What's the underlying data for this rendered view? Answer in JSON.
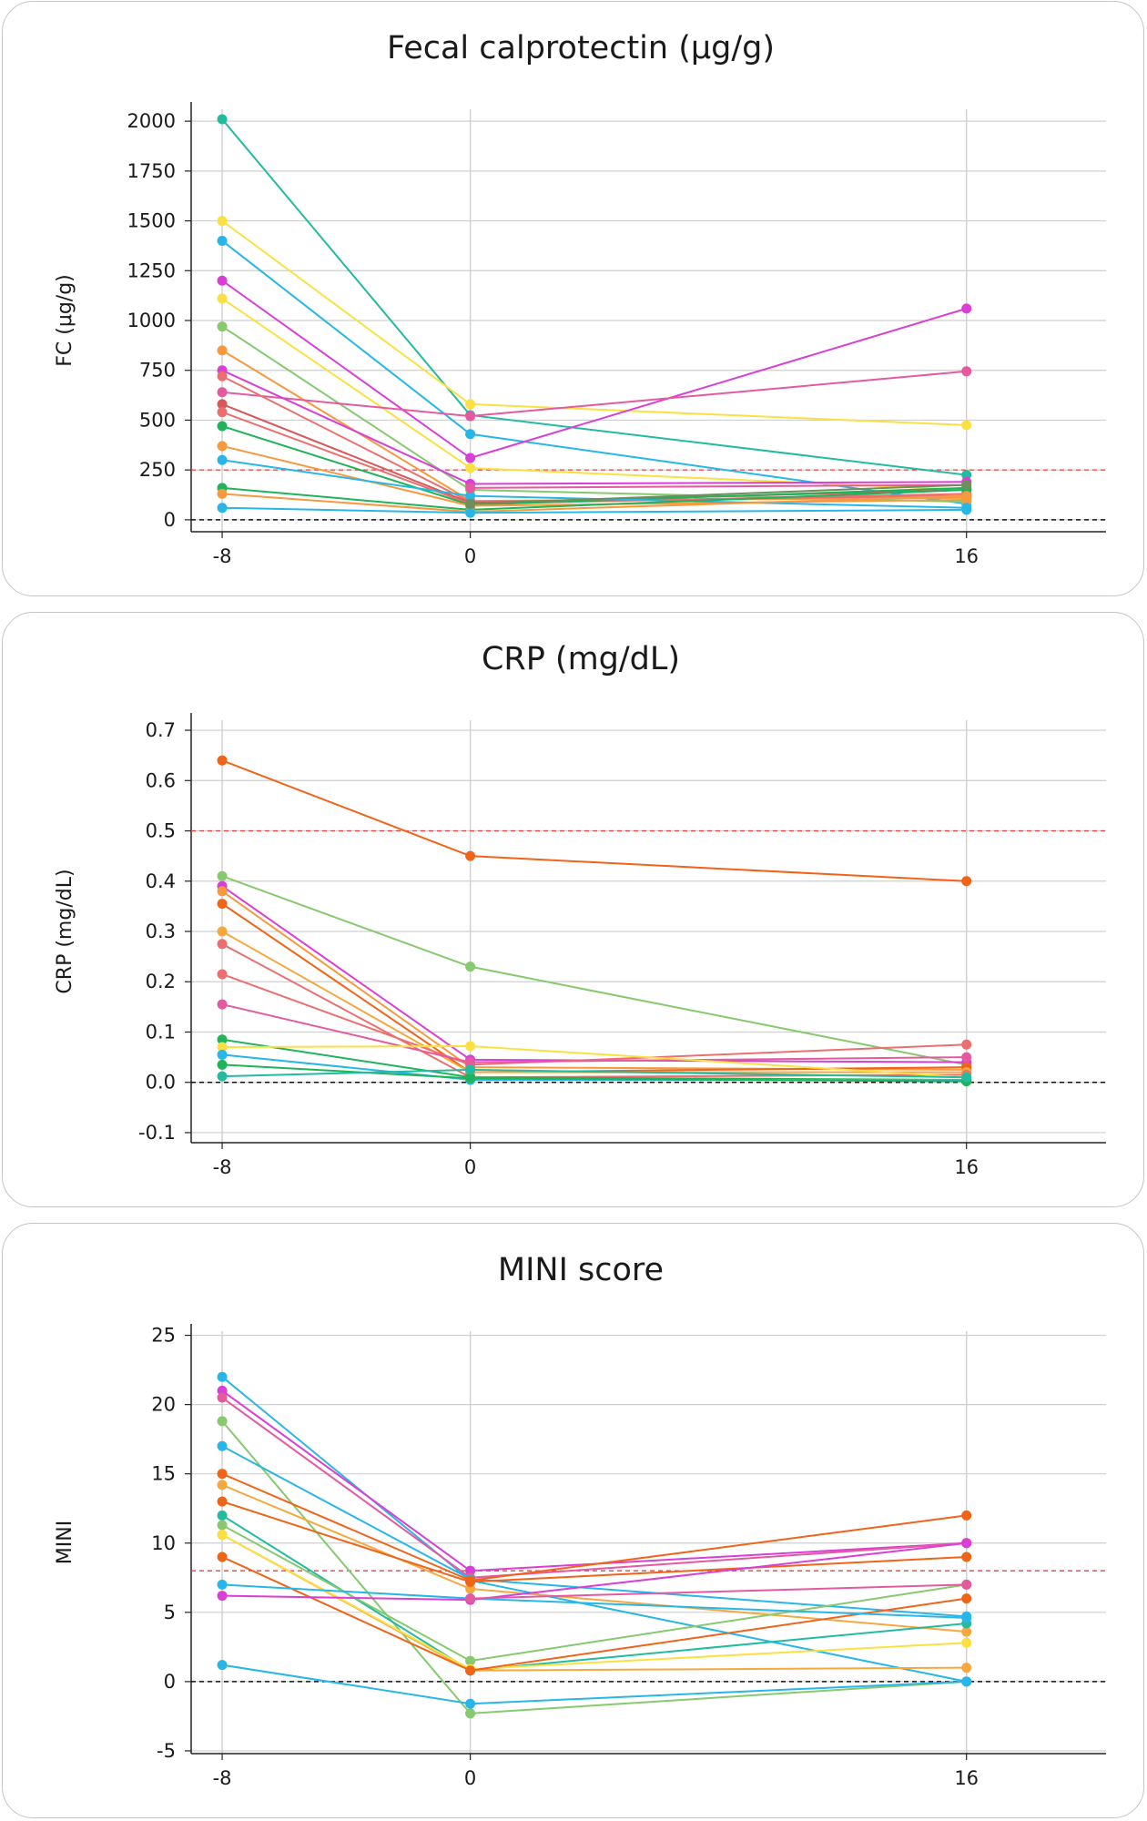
{
  "chart_data": [
    {
      "type": "line",
      "title": "Fecal calprotectin (μg/g)",
      "xlabel": "",
      "ylabel": "FC (μg/g)",
      "x": [
        -8,
        0,
        16
      ],
      "x_ticks": [
        "-8",
        "0",
        "16"
      ],
      "y_ticks": [
        "0",
        "250",
        "500",
        "750",
        "1000",
        "1250",
        "1500",
        "1750",
        "2000"
      ],
      "ylim": [
        -60,
        2060
      ],
      "grid": true,
      "threshold": 250,
      "threshold_color": "#e84040",
      "zero_line": 0,
      "series": [
        {
          "color": "#22bba0",
          "values": [
            2010,
            525,
            225
          ]
        },
        {
          "color": "#fbe044",
          "values": [
            1500,
            580,
            475
          ]
        },
        {
          "color": "#28b6e8",
          "values": [
            1400,
            430,
            80
          ]
        },
        {
          "color": "#d93fd6",
          "values": [
            1200,
            310,
            1060
          ]
        },
        {
          "color": "#fbe044",
          "values": [
            1110,
            260,
            150
          ]
        },
        {
          "color": "#86c96e",
          "values": [
            970,
            150,
            90
          ]
        },
        {
          "color": "#f59a3e",
          "values": [
            850,
            95,
            110
          ]
        },
        {
          "color": "#e45aa0",
          "values": [
            640,
            520,
            745
          ]
        },
        {
          "color": "#d93fd6",
          "values": [
            750,
            180,
            190
          ]
        },
        {
          "color": "#ec6f6f",
          "values": [
            720,
            90,
            120
          ]
        },
        {
          "color": "#d65a5a",
          "values": [
            580,
            85,
            150
          ]
        },
        {
          "color": "#ec6f6f",
          "values": [
            540,
            80,
            130
          ]
        },
        {
          "color": "#1fb35a",
          "values": [
            470,
            75,
            160
          ]
        },
        {
          "color": "#f59a3e",
          "values": [
            370,
            70,
            100
          ]
        },
        {
          "color": "#28b6e8",
          "values": [
            300,
            120,
            60
          ]
        },
        {
          "color": "#1fb35a",
          "values": [
            160,
            50,
            150
          ]
        },
        {
          "color": "#f59a3e",
          "values": [
            130,
            40,
            120
          ]
        },
        {
          "color": "#28b6e8",
          "values": [
            60,
            35,
            50
          ]
        },
        {
          "color": "#e45aa0",
          "values": [
            null,
            160,
            175
          ]
        },
        {
          "color": "#6e8f5a",
          "values": [
            null,
            80,
            175
          ]
        }
      ]
    },
    {
      "type": "line",
      "title": "CRP (mg/dL)",
      "xlabel": "",
      "ylabel": "CRP (mg/dL)",
      "x": [
        -8,
        0,
        16
      ],
      "x_ticks": [
        "-8",
        "0",
        "16"
      ],
      "y_ticks": [
        "-0.1",
        "0.0",
        "0.1",
        "0.2",
        "0.3",
        "0.4",
        "0.5",
        "0.6",
        "0.7"
      ],
      "ylim": [
        -0.12,
        0.72
      ],
      "grid": true,
      "threshold": 0.5,
      "threshold_color": "#e84040",
      "zero_line": 0,
      "series": [
        {
          "color": "#f06418",
          "values": [
            0.64,
            0.45,
            0.4
          ]
        },
        {
          "color": "#86c96e",
          "values": [
            0.41,
            0.23,
            0.035
          ]
        },
        {
          "color": "#d93fd6",
          "values": [
            0.39,
            0.045,
            0.04
          ]
        },
        {
          "color": "#f59a3e",
          "values": [
            0.38,
            0.03,
            0.025
          ]
        },
        {
          "color": "#f06418",
          "values": [
            0.355,
            0.02,
            0.03
          ]
        },
        {
          "color": "#f5a83e",
          "values": [
            0.3,
            0.02,
            0.02
          ]
        },
        {
          "color": "#ec6f6f",
          "values": [
            0.275,
            0.01,
            0.015
          ]
        },
        {
          "color": "#ec6f6f",
          "values": [
            0.215,
            0.035,
            0.075
          ]
        },
        {
          "color": "#e45aa0",
          "values": [
            0.155,
            0.04,
            0.05
          ]
        },
        {
          "color": "#1fb35a",
          "values": [
            0.085,
            0.01,
            0.005
          ]
        },
        {
          "color": "#fbe044",
          "values": [
            0.07,
            0.072,
            0.01
          ]
        },
        {
          "color": "#28b6e8",
          "values": [
            0.055,
            0.005,
            0.005
          ]
        },
        {
          "color": "#1fb35a",
          "values": [
            0.035,
            0.008,
            0.002
          ]
        },
        {
          "color": "#22bba0",
          "values": [
            0.012,
            0.025,
            0.01
          ]
        }
      ]
    },
    {
      "type": "line",
      "title": "MINI score",
      "xlabel": "",
      "ylabel": "MINI",
      "x": [
        -8,
        0,
        16
      ],
      "x_ticks": [
        "-8",
        "0",
        "16"
      ],
      "y_ticks": [
        "-5",
        "0",
        "5",
        "10",
        "15",
        "20",
        "25"
      ],
      "ylim": [
        -5.2,
        25.3
      ],
      "grid": true,
      "threshold": 8,
      "threshold_color": "#e84040",
      "zero_line": 0,
      "series": [
        {
          "color": "#28b6e8",
          "values": [
            22,
            7.3,
            0
          ]
        },
        {
          "color": "#d93fd6",
          "values": [
            21,
            8,
            10
          ]
        },
        {
          "color": "#e45aa0",
          "values": [
            20.5,
            7.5,
            10
          ]
        },
        {
          "color": "#86c96e",
          "values": [
            18.8,
            -2.3,
            0
          ]
        },
        {
          "color": "#28b6e8",
          "values": [
            17,
            7.4,
            4.7
          ]
        },
        {
          "color": "#f06418",
          "values": [
            15,
            7.3,
            12
          ]
        },
        {
          "color": "#f5a83e",
          "values": [
            14.2,
            6.7,
            3.6
          ]
        },
        {
          "color": "#f06418",
          "values": [
            13,
            7.2,
            9
          ]
        },
        {
          "color": "#22bba0",
          "values": [
            12,
            0.8,
            4.2
          ]
        },
        {
          "color": "#86c96e",
          "values": [
            11.3,
            1.5,
            7
          ]
        },
        {
          "color": "#f5a83e",
          "values": [
            10.6,
            0.8,
            1
          ]
        },
        {
          "color": "#fbe044",
          "values": [
            10.6,
            0.9,
            2.8
          ]
        },
        {
          "color": "#f06418",
          "values": [
            9,
            0.8,
            6
          ]
        },
        {
          "color": "#28b6e8",
          "values": [
            7,
            6,
            4.6
          ]
        },
        {
          "color": "#d93fd6",
          "values": [
            6.2,
            5.9,
            10
          ]
        },
        {
          "color": "#28b6e8",
          "values": [
            1.2,
            -1.6,
            0
          ]
        },
        {
          "color": "#e45aa0",
          "values": [
            null,
            6,
            7
          ]
        }
      ]
    }
  ]
}
